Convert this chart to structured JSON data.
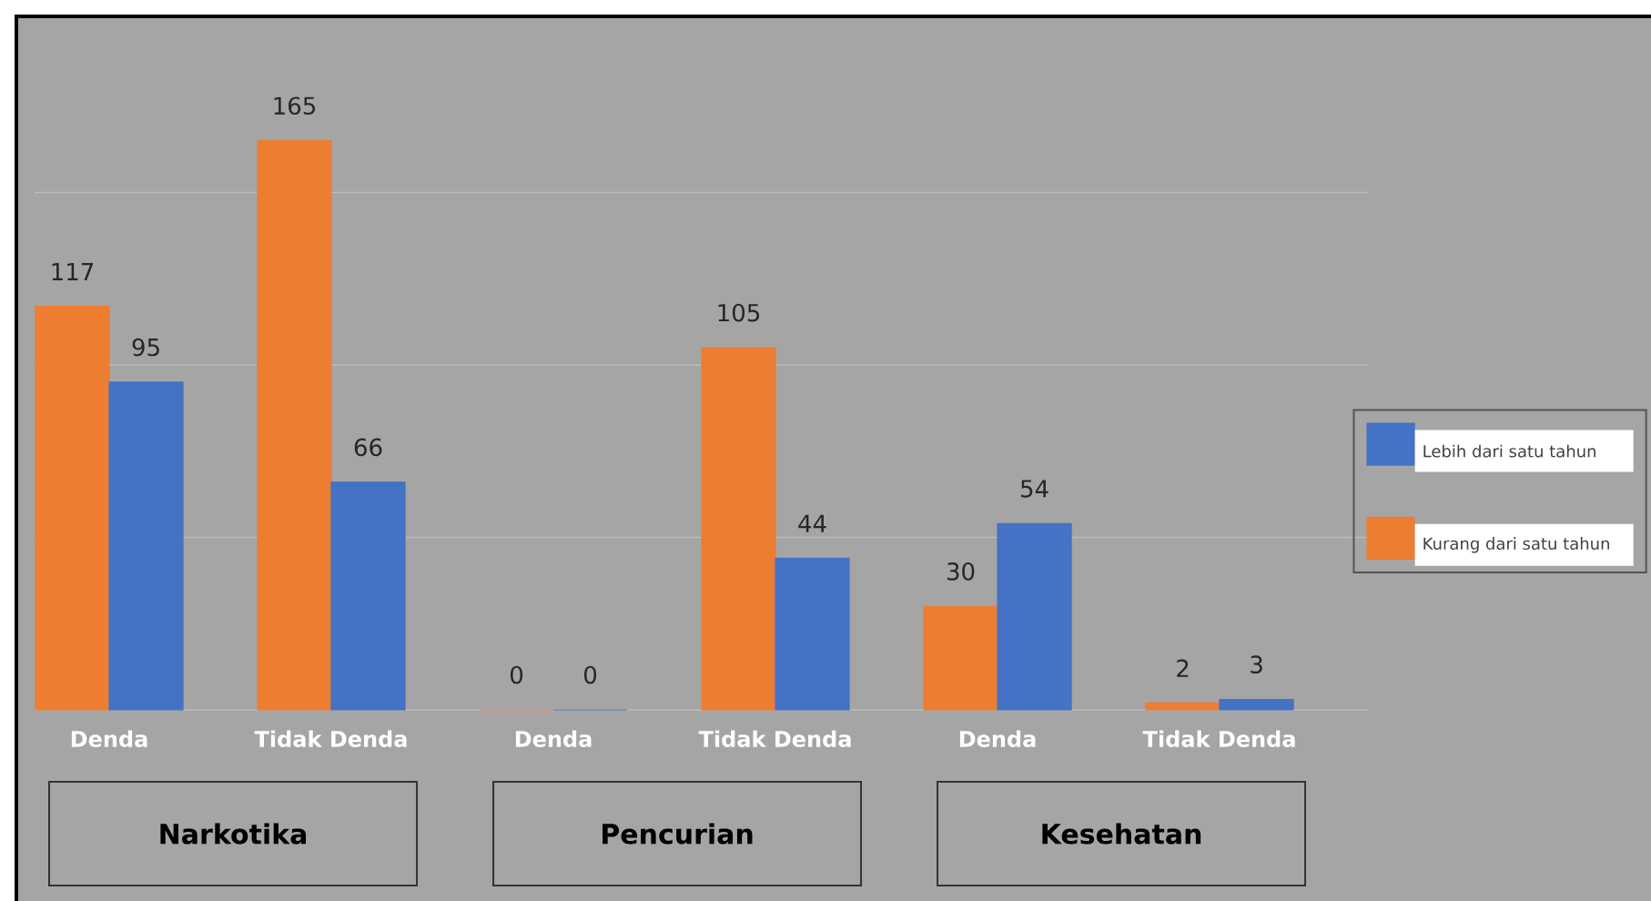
{
  "chart_data": {
    "type": "bar",
    "categories": [
      "Denda",
      "Tidak Denda",
      "Denda",
      "Tidak Denda",
      "Denda",
      "Tidak Denda"
    ],
    "series": [
      {
        "name": "Kurang dari satu tahun",
        "color": "#ed7d31",
        "values": [
          117,
          165,
          0,
          105,
          30,
          2
        ]
      },
      {
        "name": "Lebih dari satu tahun",
        "color": "#4472c4",
        "values": [
          95,
          66,
          0,
          44,
          54,
          3
        ]
      }
    ],
    "ylim": [
      0,
      200
    ],
    "yticks": [
      {
        "value": 0,
        "label": null
      },
      {
        "value": 50,
        "label": null
      },
      {
        "value": 100,
        "label": null
      },
      {
        "value": 150,
        "label": null
      }
    ],
    "tick_labels": "x",
    "grid": "y",
    "legend": "right",
    "data_labels": true,
    "annotations": [
      "Narkotika",
      "Pencurian",
      "Kesehatan"
    ]
  }
}
